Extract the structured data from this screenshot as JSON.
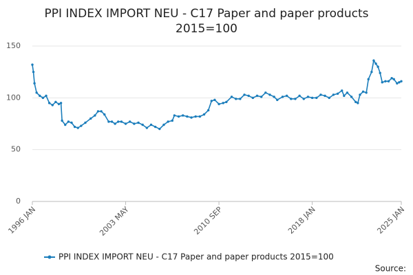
{
  "chart_data": {
    "type": "line",
    "title": [
      "PPI INDEX IMPORT NEU - C17 Paper and paper products",
      "2015=100"
    ],
    "source_label": "Source:",
    "x": [
      "1996 JAN",
      "1996 FEB",
      "1996 MAR",
      "1996 MAY",
      "1996 AUG",
      "1996 NOV",
      "1997 FEB",
      "1997 MAY",
      "1997 AUG",
      "1997 NOV",
      "1998 FEB",
      "1998 APR",
      "1998 MAY",
      "1998 AUG",
      "1998 NOV",
      "1999 FEB",
      "1999 MAY",
      "1999 AUG",
      "1999 NOV",
      "2000 MAR",
      "2000 AUG",
      "2000 DEC",
      "2001 MAR",
      "2001 JUN",
      "2001 SEP",
      "2002 JAN",
      "2002 APR",
      "2002 JUL",
      "2002 OCT",
      "2003 JAN",
      "2003 MAY",
      "2003 SEP",
      "2004 JAN",
      "2004 MAY",
      "2004 SEP",
      "2005 JAN",
      "2005 MAY",
      "2005 SEP",
      "2006 JAN",
      "2006 MAY",
      "2006 SEP",
      "2007 JAN",
      "2007 MAR",
      "2007 JUL",
      "2007 NOV",
      "2008 MAR",
      "2008 JUL",
      "2008 NOV",
      "2009 MAR",
      "2009 JUL",
      "2009 NOV",
      "2010 FEB",
      "2010 MAY",
      "2010 SEP",
      "2011 JAN",
      "2011 APR",
      "2011 SEP",
      "2012 JAN",
      "2012 MAY",
      "2012 SEP",
      "2013 JAN",
      "2013 MAY",
      "2013 SEP",
      "2014 JAN",
      "2014 MAY",
      "2014 SEP",
      "2015 JAN",
      "2015 APR",
      "2015 SEP",
      "2016 JAN",
      "2016 MAY",
      "2016 SEP",
      "2017 JAN",
      "2017 MAY",
      "2017 SEP",
      "2018 JAN",
      "2018 MAY",
      "2018 SEP",
      "2019 JAN",
      "2019 MAY",
      "2019 SEP",
      "2020 JAN",
      "2020 MAY",
      "2020 JUL",
      "2020 OCT",
      "2021 FEB",
      "2021 JUN",
      "2021 AUG",
      "2021 OCT",
      "2022 JAN",
      "2022 APR",
      "2022 JUN",
      "2022 SEP",
      "2022 NOV",
      "2023 JAN",
      "2023 MAR",
      "2023 MAY",
      "2023 JUL",
      "2023 OCT",
      "2024 JAN",
      "2024 APR",
      "2024 JUN",
      "2024 SEP",
      "2024 NOV",
      "2025 JAN"
    ],
    "series": [
      {
        "name": "PPI INDEX IMPORT NEU - C17 Paper and paper products 2015=100",
        "color": "#1b7dbb",
        "values": [
          132,
          125,
          114,
          105,
          102,
          100,
          102,
          95,
          93,
          96,
          94,
          95,
          78,
          74,
          77,
          76,
          72,
          71,
          73,
          76,
          80,
          83,
          87,
          87,
          84,
          77,
          77,
          75,
          77,
          77,
          75,
          77,
          75,
          76,
          74,
          71,
          74,
          72,
          70,
          74,
          77,
          78,
          83,
          82,
          83,
          82,
          81,
          82,
          82,
          84,
          88,
          97,
          98,
          94,
          95,
          96,
          101,
          99,
          99,
          103,
          102,
          100,
          102,
          101,
          105,
          103,
          101,
          98,
          101,
          102,
          99,
          99,
          102,
          99,
          101,
          100,
          100,
          103,
          102,
          100,
          103,
          104,
          107,
          102,
          105,
          101,
          96,
          95,
          103,
          106,
          105,
          118,
          125,
          136,
          133,
          130,
          124,
          115,
          116,
          116,
          119,
          118,
          114,
          115,
          116
        ]
      }
    ],
    "xlim": [
      "1996 JAN",
      "2025 JAN"
    ],
    "xticks": [
      "1996 JAN",
      "2003 MAY",
      "2010 SEP",
      "2018 JAN",
      "2025 JAN"
    ],
    "ylim": [
      0,
      150
    ],
    "yticks": [
      0,
      50,
      100,
      150
    ],
    "grid": true
  }
}
